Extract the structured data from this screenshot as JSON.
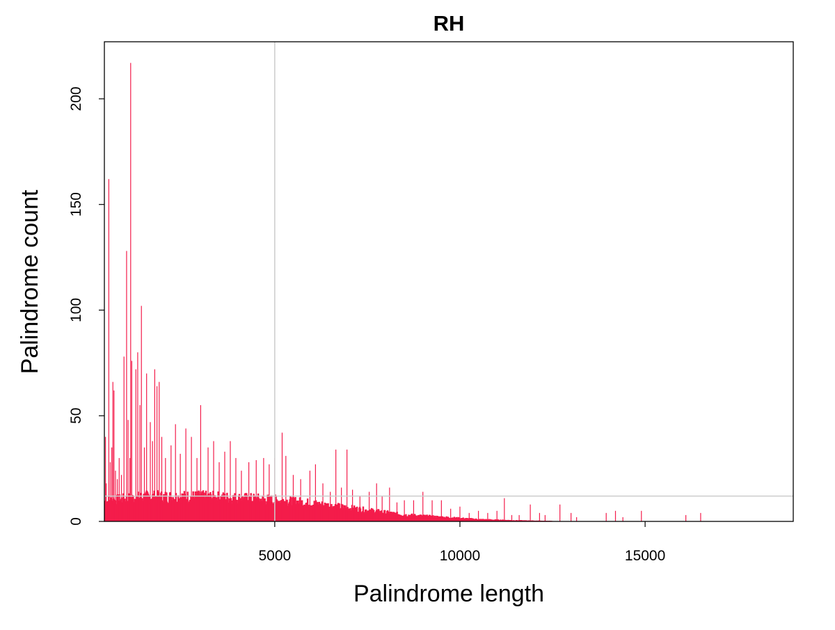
{
  "chart_data": {
    "type": "bar",
    "title": "RH",
    "xlabel": "Palindrome length",
    "ylabel": "Palindrome count",
    "xlim": [
      400,
      19000
    ],
    "ylim": [
      0,
      227
    ],
    "x_ticks": [
      5000,
      10000,
      15000
    ],
    "y_ticks": [
      0,
      50,
      100,
      150,
      200
    ],
    "x_tick_labels": [
      "5000",
      "10000",
      "15000"
    ],
    "y_tick_labels": [
      "0",
      "50",
      "100",
      "150",
      "200"
    ],
    "reference_lines": {
      "vertical_x": 5000,
      "horizontal_y": 12
    },
    "bar_color": "#F41C4B",
    "reference_line_color": "#CCCCCC",
    "density_envelope": [
      [
        420,
        9
      ],
      [
        1500,
        11
      ],
      [
        3000,
        11
      ],
      [
        4500,
        10
      ],
      [
        5500,
        9
      ],
      [
        6500,
        7
      ],
      [
        7500,
        5
      ],
      [
        8500,
        3
      ],
      [
        9500,
        2
      ],
      [
        10500,
        1
      ],
      [
        11500,
        0.5
      ],
      [
        12500,
        0.2
      ]
    ],
    "spikes": [
      {
        "x": 430,
        "y": 40
      },
      {
        "x": 450,
        "y": 18
      },
      {
        "x": 520,
        "y": 162
      },
      {
        "x": 560,
        "y": 28
      },
      {
        "x": 600,
        "y": 35
      },
      {
        "x": 630,
        "y": 66
      },
      {
        "x": 660,
        "y": 62
      },
      {
        "x": 700,
        "y": 24
      },
      {
        "x": 750,
        "y": 20
      },
      {
        "x": 800,
        "y": 30
      },
      {
        "x": 860,
        "y": 22
      },
      {
        "x": 930,
        "y": 78
      },
      {
        "x": 1000,
        "y": 128
      },
      {
        "x": 1040,
        "y": 48
      },
      {
        "x": 1090,
        "y": 30
      },
      {
        "x": 1110,
        "y": 217
      },
      {
        "x": 1140,
        "y": 76
      },
      {
        "x": 1250,
        "y": 72
      },
      {
        "x": 1300,
        "y": 80
      },
      {
        "x": 1360,
        "y": 55
      },
      {
        "x": 1400,
        "y": 102
      },
      {
        "x": 1480,
        "y": 35
      },
      {
        "x": 1540,
        "y": 70
      },
      {
        "x": 1640,
        "y": 47
      },
      {
        "x": 1700,
        "y": 38
      },
      {
        "x": 1760,
        "y": 72
      },
      {
        "x": 1820,
        "y": 64
      },
      {
        "x": 1880,
        "y": 66
      },
      {
        "x": 1950,
        "y": 40
      },
      {
        "x": 2050,
        "y": 30
      },
      {
        "x": 2200,
        "y": 36
      },
      {
        "x": 2320,
        "y": 46
      },
      {
        "x": 2450,
        "y": 32
      },
      {
        "x": 2600,
        "y": 44
      },
      {
        "x": 2750,
        "y": 40
      },
      {
        "x": 2900,
        "y": 30
      },
      {
        "x": 3000,
        "y": 55
      },
      {
        "x": 3200,
        "y": 35
      },
      {
        "x": 3350,
        "y": 38
      },
      {
        "x": 3500,
        "y": 28
      },
      {
        "x": 3650,
        "y": 33
      },
      {
        "x": 3800,
        "y": 38
      },
      {
        "x": 3950,
        "y": 30
      },
      {
        "x": 4100,
        "y": 24
      },
      {
        "x": 4300,
        "y": 28
      },
      {
        "x": 4500,
        "y": 29
      },
      {
        "x": 4700,
        "y": 30
      },
      {
        "x": 4850,
        "y": 27
      },
      {
        "x": 5000,
        "y": 30
      },
      {
        "x": 5200,
        "y": 42
      },
      {
        "x": 5300,
        "y": 31
      },
      {
        "x": 5500,
        "y": 22
      },
      {
        "x": 5700,
        "y": 20
      },
      {
        "x": 5950,
        "y": 24
      },
      {
        "x": 6100,
        "y": 27
      },
      {
        "x": 6300,
        "y": 18
      },
      {
        "x": 6500,
        "y": 14
      },
      {
        "x": 6650,
        "y": 34
      },
      {
        "x": 6800,
        "y": 16
      },
      {
        "x": 6950,
        "y": 34
      },
      {
        "x": 7100,
        "y": 15
      },
      {
        "x": 7300,
        "y": 12
      },
      {
        "x": 7550,
        "y": 14
      },
      {
        "x": 7750,
        "y": 18
      },
      {
        "x": 7900,
        "y": 12
      },
      {
        "x": 8100,
        "y": 16
      },
      {
        "x": 8300,
        "y": 9
      },
      {
        "x": 8500,
        "y": 10
      },
      {
        "x": 8750,
        "y": 10
      },
      {
        "x": 9000,
        "y": 14
      },
      {
        "x": 9250,
        "y": 10
      },
      {
        "x": 9500,
        "y": 10
      },
      {
        "x": 9750,
        "y": 6
      },
      {
        "x": 10000,
        "y": 7
      },
      {
        "x": 10250,
        "y": 4
      },
      {
        "x": 10500,
        "y": 5
      },
      {
        "x": 10750,
        "y": 4
      },
      {
        "x": 11000,
        "y": 5
      },
      {
        "x": 11200,
        "y": 11
      },
      {
        "x": 11400,
        "y": 3
      },
      {
        "x": 11600,
        "y": 3
      },
      {
        "x": 11900,
        "y": 8
      },
      {
        "x": 12150,
        "y": 4
      },
      {
        "x": 12300,
        "y": 3
      },
      {
        "x": 12700,
        "y": 8
      },
      {
        "x": 13000,
        "y": 4
      },
      {
        "x": 13150,
        "y": 2
      },
      {
        "x": 13950,
        "y": 4
      },
      {
        "x": 14200,
        "y": 5
      },
      {
        "x": 14400,
        "y": 2
      },
      {
        "x": 14900,
        "y": 5
      },
      {
        "x": 16100,
        "y": 3
      },
      {
        "x": 16500,
        "y": 4
      }
    ]
  }
}
